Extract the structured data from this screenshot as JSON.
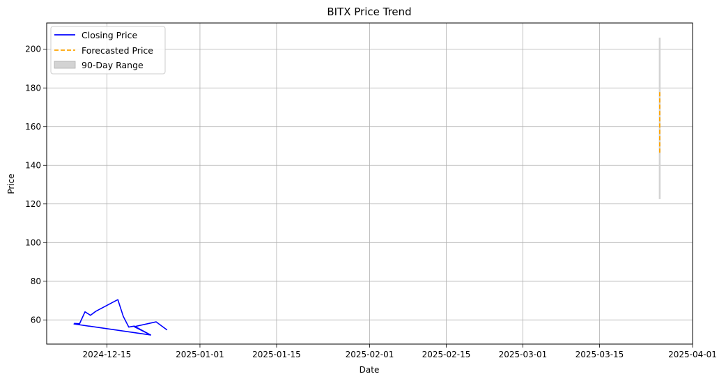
{
  "chart_data": {
    "type": "line",
    "title": "BITX Price Trend",
    "xlabel": "Date",
    "ylabel": "Price",
    "x_ticks": [
      "2024-12-15",
      "2025-01-01",
      "2025-01-15",
      "2025-02-01",
      "2025-02-15",
      "2025-03-01",
      "2025-03-15",
      "2025-04-01"
    ],
    "y_ticks": [
      60,
      80,
      100,
      120,
      140,
      160,
      180,
      200
    ],
    "xlim": [
      "2024-12-04",
      "2025-04-01"
    ],
    "ylim": [
      47.5,
      213.6
    ],
    "grid": true,
    "legend_position": "upper-left",
    "series": [
      {
        "name": "Closing Price",
        "style": "solid",
        "color": "#0000ff",
        "points": [
          {
            "x": "2024-12-09",
            "y": 58.2
          },
          {
            "x": "2024-12-10",
            "y": 58.0
          },
          {
            "x": "2024-12-11",
            "y": 64.2
          },
          {
            "x": "2024-12-12",
            "y": 62.4
          },
          {
            "x": "2024-12-13",
            "y": 64.5
          },
          {
            "x": "2024-12-16",
            "y": 69.0
          },
          {
            "x": "2024-12-17",
            "y": 70.5
          },
          {
            "x": "2024-12-18",
            "y": 61.8
          },
          {
            "x": "2024-12-19",
            "y": 56.3
          },
          {
            "x": "2024-12-20",
            "y": 56.8
          },
          {
            "x": "2024-12-23",
            "y": 52.2
          },
          {
            "x": "2024-12-09",
            "y": 57.9
          },
          {
            "x": "2024-12-23",
            "y": 52.2
          },
          {
            "x": "2024-12-20",
            "y": 56.5
          },
          {
            "x": "2024-12-24",
            "y": 59.0
          },
          {
            "x": "2024-12-26",
            "y": 54.8
          }
        ]
      },
      {
        "name": "Forecasted Price",
        "style": "dashed",
        "color": "#ffa500",
        "points": [
          {
            "x": "2025-03-26",
            "y": 146.5
          },
          {
            "x": "2025-03-26",
            "y": 178.0
          }
        ]
      }
    ],
    "range_band": {
      "name": "90-Day Range",
      "color": "#d3d3d3",
      "x": "2025-03-26",
      "low": 122.5,
      "high": 206.0
    }
  }
}
